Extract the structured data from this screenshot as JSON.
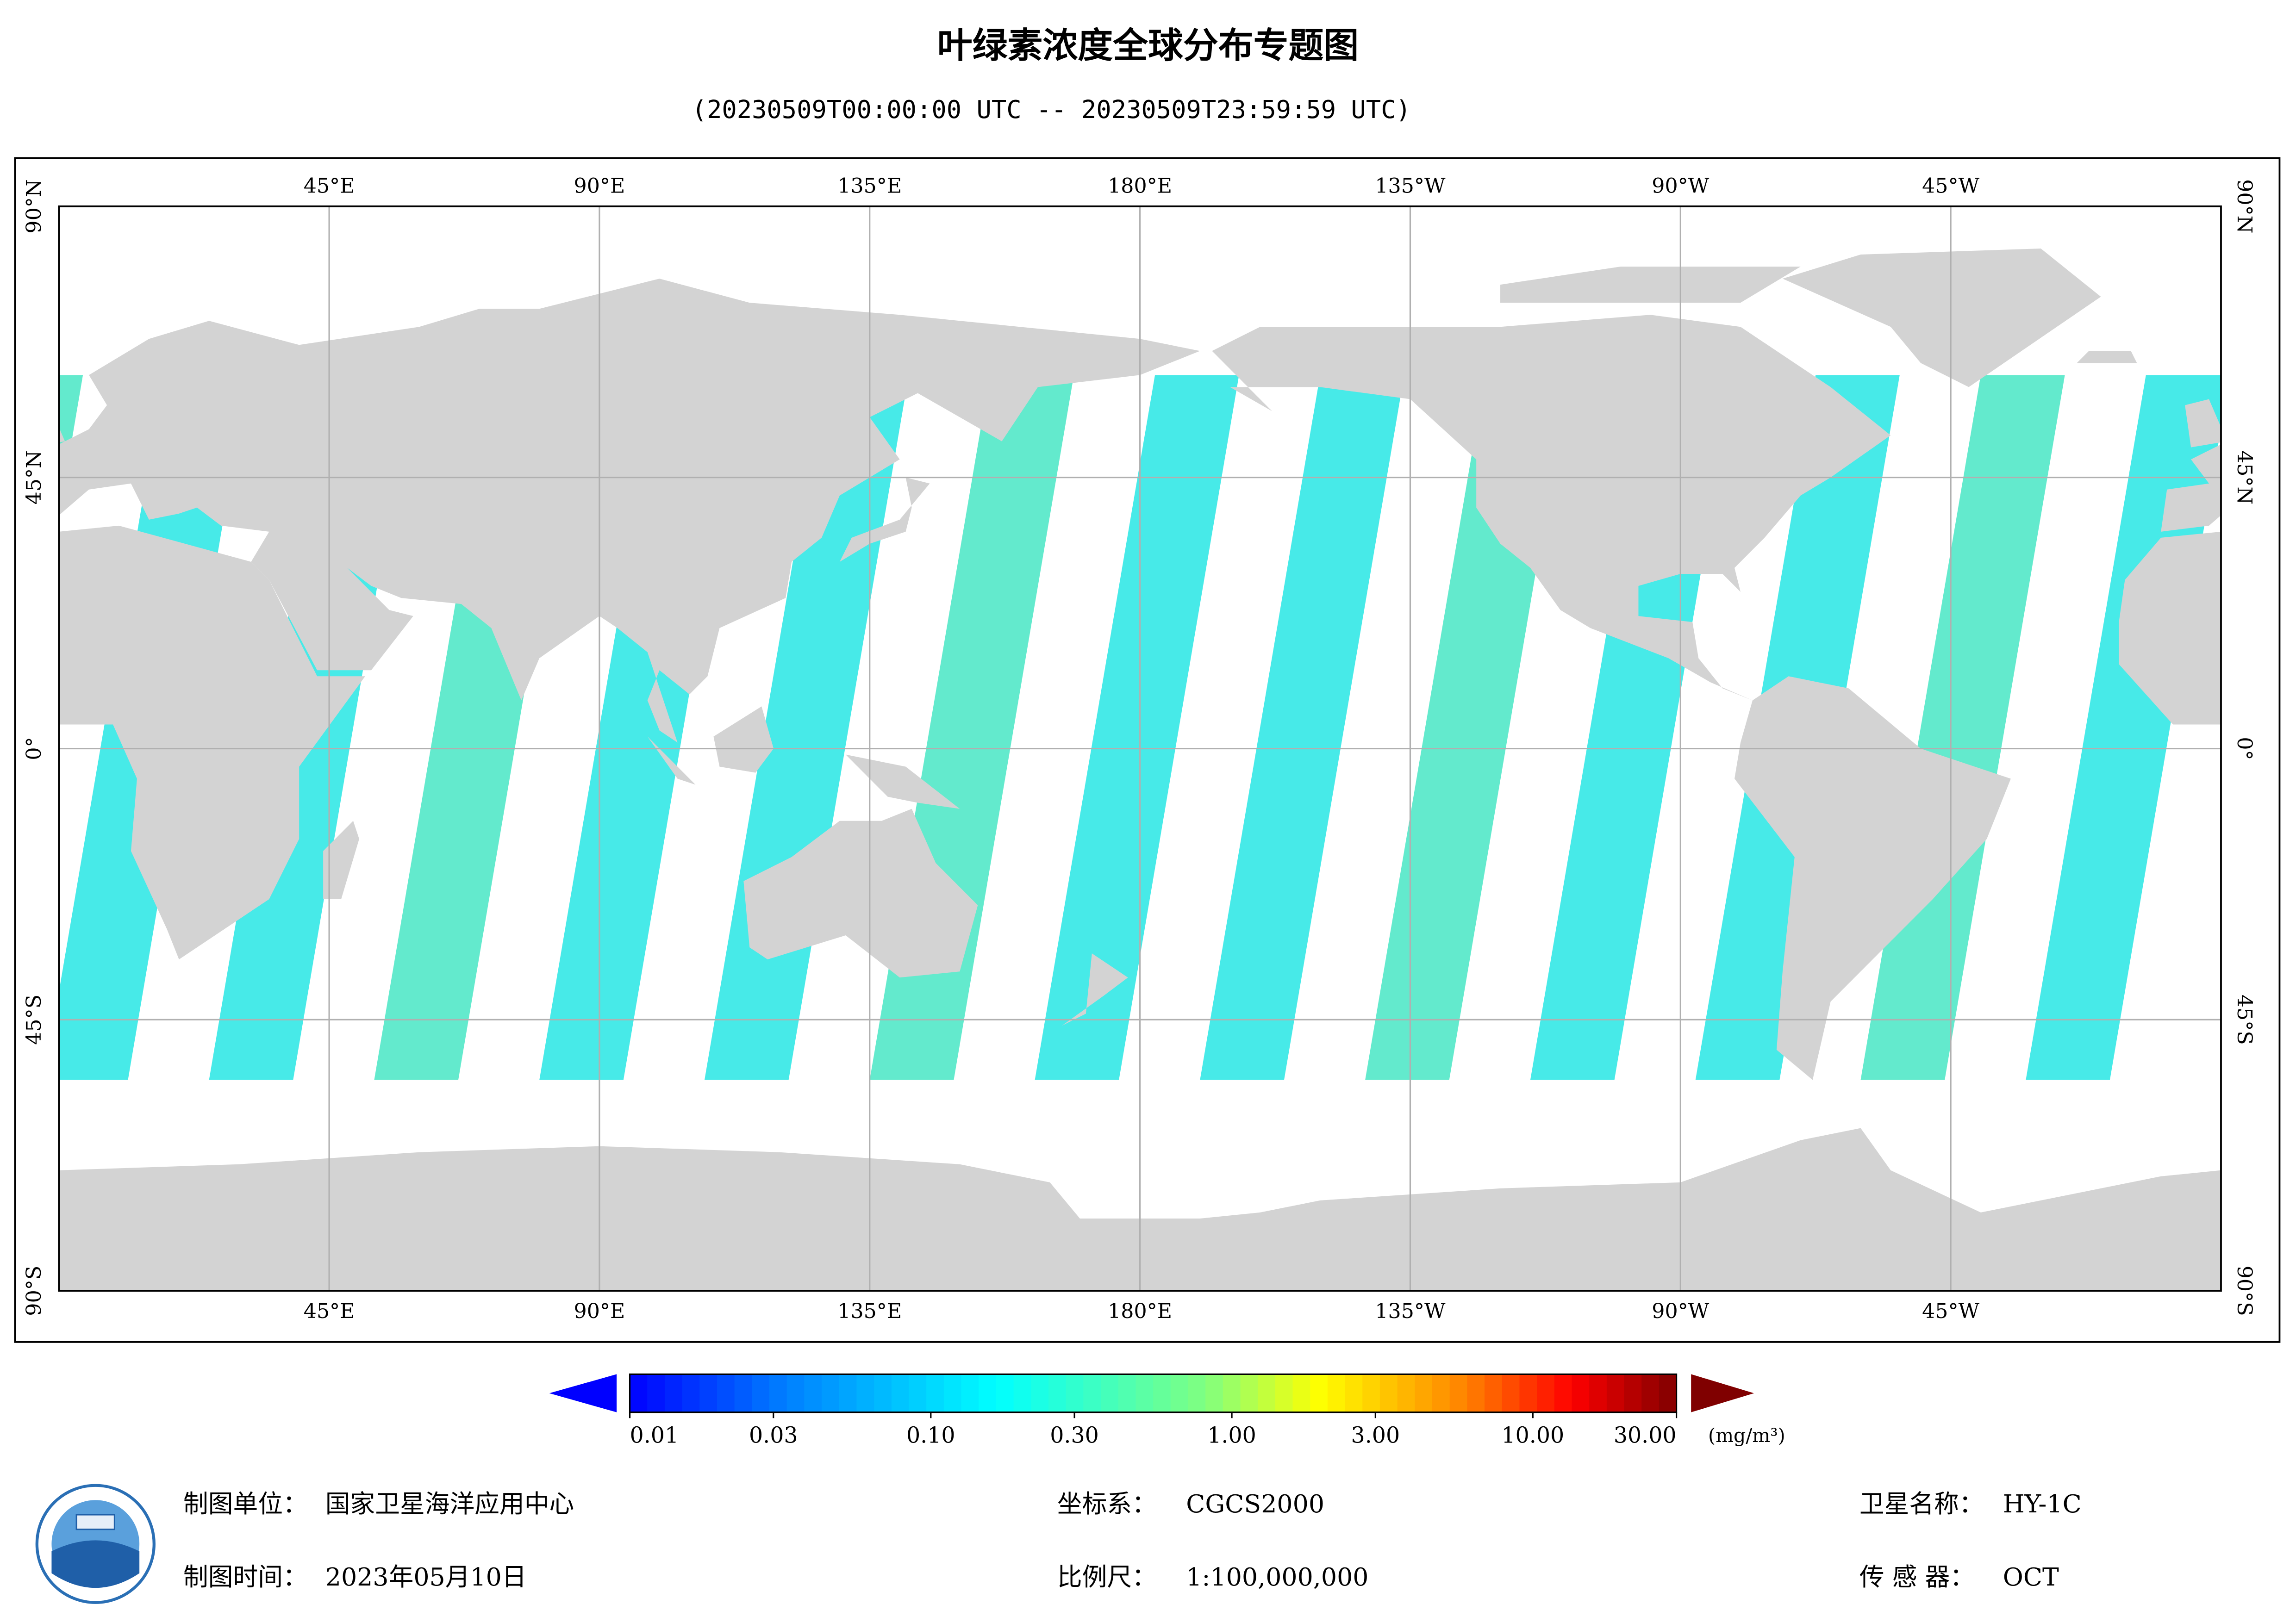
{
  "title": "叶绿素浓度全球分布专题图",
  "subtitle": "(20230509T00:00:00 UTC -- 20230509T23:59:59 UTC)",
  "map": {
    "lon_range": [
      0,
      360
    ],
    "lat_range": [
      90,
      -90
    ],
    "lon_ticks": [
      {
        "value": 45,
        "label": "45°E"
      },
      {
        "value": 90,
        "label": "90°E"
      },
      {
        "value": 135,
        "label": "135°E"
      },
      {
        "value": 180,
        "label": "180°E"
      },
      {
        "value": 225,
        "label": "135°W"
      },
      {
        "value": 270,
        "label": "90°W"
      },
      {
        "value": 315,
        "label": "45°W"
      }
    ],
    "lat_ticks": [
      {
        "value": 90,
        "label": "90°N"
      },
      {
        "value": 45,
        "label": "45°N"
      },
      {
        "value": 0,
        "label": "0°"
      },
      {
        "value": -45,
        "label": "45°S"
      },
      {
        "value": -90,
        "label": "90°S"
      }
    ]
  },
  "colorbar": {
    "range": [
      0.01,
      30
    ],
    "scale": "log",
    "ticks": [
      {
        "value": 0.01,
        "label": "0.01"
      },
      {
        "value": 0.03,
        "label": "0.03"
      },
      {
        "value": 0.1,
        "label": "0.10"
      },
      {
        "value": 0.3,
        "label": "0.30"
      },
      {
        "value": 1,
        "label": "1.00"
      },
      {
        "value": 3,
        "label": "3.00"
      },
      {
        "value": 10,
        "label": "10.00"
      },
      {
        "value": 30,
        "label": "30.00"
      }
    ],
    "unit": "(mg/m³)"
  },
  "footer": {
    "unit_label": "制图单位：",
    "unit": "国家卫星海洋应用中心",
    "date_label": "制图时间：",
    "date": "2023年05月10日",
    "crs_label": "坐标系：",
    "crs": "CGCS2000",
    "scale_label": "比例尺：",
    "scale": "1:100,000,000",
    "satellite_label": "卫星名称：",
    "satellite": "HY-1C",
    "sensor_label": "传 感 器：",
    "sensor": "OCT"
  }
}
